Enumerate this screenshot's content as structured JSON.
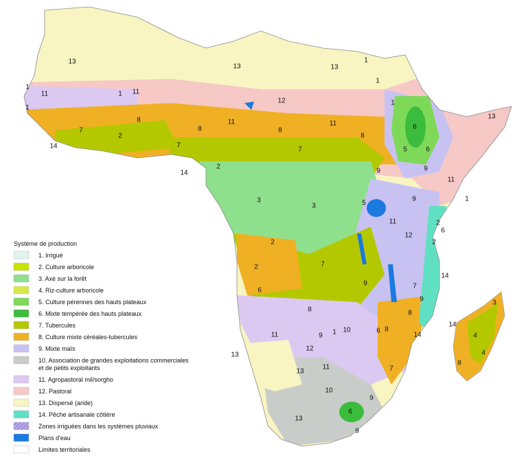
{
  "legend": {
    "title": "Système de production",
    "items": [
      {
        "label": [
          "1. Irrigué"
        ],
        "color": "#dff4ef"
      },
      {
        "label": [
          "2. Culture arboricole"
        ],
        "color": "#c6e400"
      },
      {
        "label": [
          "3. Axé sur la forêt"
        ],
        "color": "#8fe08c"
      },
      {
        "label": [
          "4. Riz-culture arboricole"
        ],
        "color": "#d8e84c"
      },
      {
        "label": [
          "5. Culture pérennes des hauts plateaux"
        ],
        "color": "#7fd958"
      },
      {
        "label": [
          "6. Mixte tempérée des hauts plateaux"
        ],
        "color": "#3cbc3c"
      },
      {
        "label": [
          "7. Tubercules"
        ],
        "color": "#b4c800"
      },
      {
        "label": [
          "8. Culture mixte céréales-tubercules"
        ],
        "color": "#f0b024"
      },
      {
        "label": [
          "9. Mixte maïs"
        ],
        "color": "#c8c2f2"
      },
      {
        "label": [
          "10. Association de grandes exploitations commerciales",
          "et de petits exploitants"
        ],
        "color": "#c9cdca"
      },
      {
        "label": [
          "11. Agropastoral mil/sorgho"
        ],
        "color": "#dcc9f2"
      },
      {
        "label": [
          "12. Pastoral"
        ],
        "color": "#f6c8c6"
      },
      {
        "label": [
          "13. Dispersé (aride)"
        ],
        "color": "#f8f5c2"
      },
      {
        "label": [
          "14. Pêche artisanale côtière"
        ],
        "color": "#60e0c2"
      },
      {
        "label": [
          "Zones irriguées dans les systèmes pluviaux"
        ],
        "color": "#b9a8e8"
      },
      {
        "label": [
          "Plans d'eau"
        ],
        "color": "#1a7ae0"
      },
      {
        "label": [
          "Limites territoriales"
        ],
        "color": "#ffffff"
      }
    ]
  },
  "map_labels": [
    "13",
    "13",
    "13",
    "1",
    "1",
    "11",
    "1",
    "11",
    "12",
    "1",
    "11",
    "7",
    "8",
    "8",
    "8",
    "11",
    "8",
    "6",
    "13",
    "14",
    "2",
    "7",
    "7",
    "5",
    "6",
    "9",
    "2",
    "14",
    "3",
    "3",
    "9",
    "11",
    "1",
    "9",
    "5",
    "11",
    "2",
    "6",
    "12",
    "2",
    "2",
    "2",
    "6",
    "7",
    "9",
    "7",
    "14",
    "9",
    "8",
    "3",
    "14",
    "8",
    "11",
    "9",
    "1",
    "10",
    "6",
    "8",
    "14",
    "4",
    "4",
    "8",
    "13",
    "12",
    "11",
    "13",
    "7",
    "10",
    "9",
    "13",
    "6",
    "9",
    "1",
    "1"
  ]
}
